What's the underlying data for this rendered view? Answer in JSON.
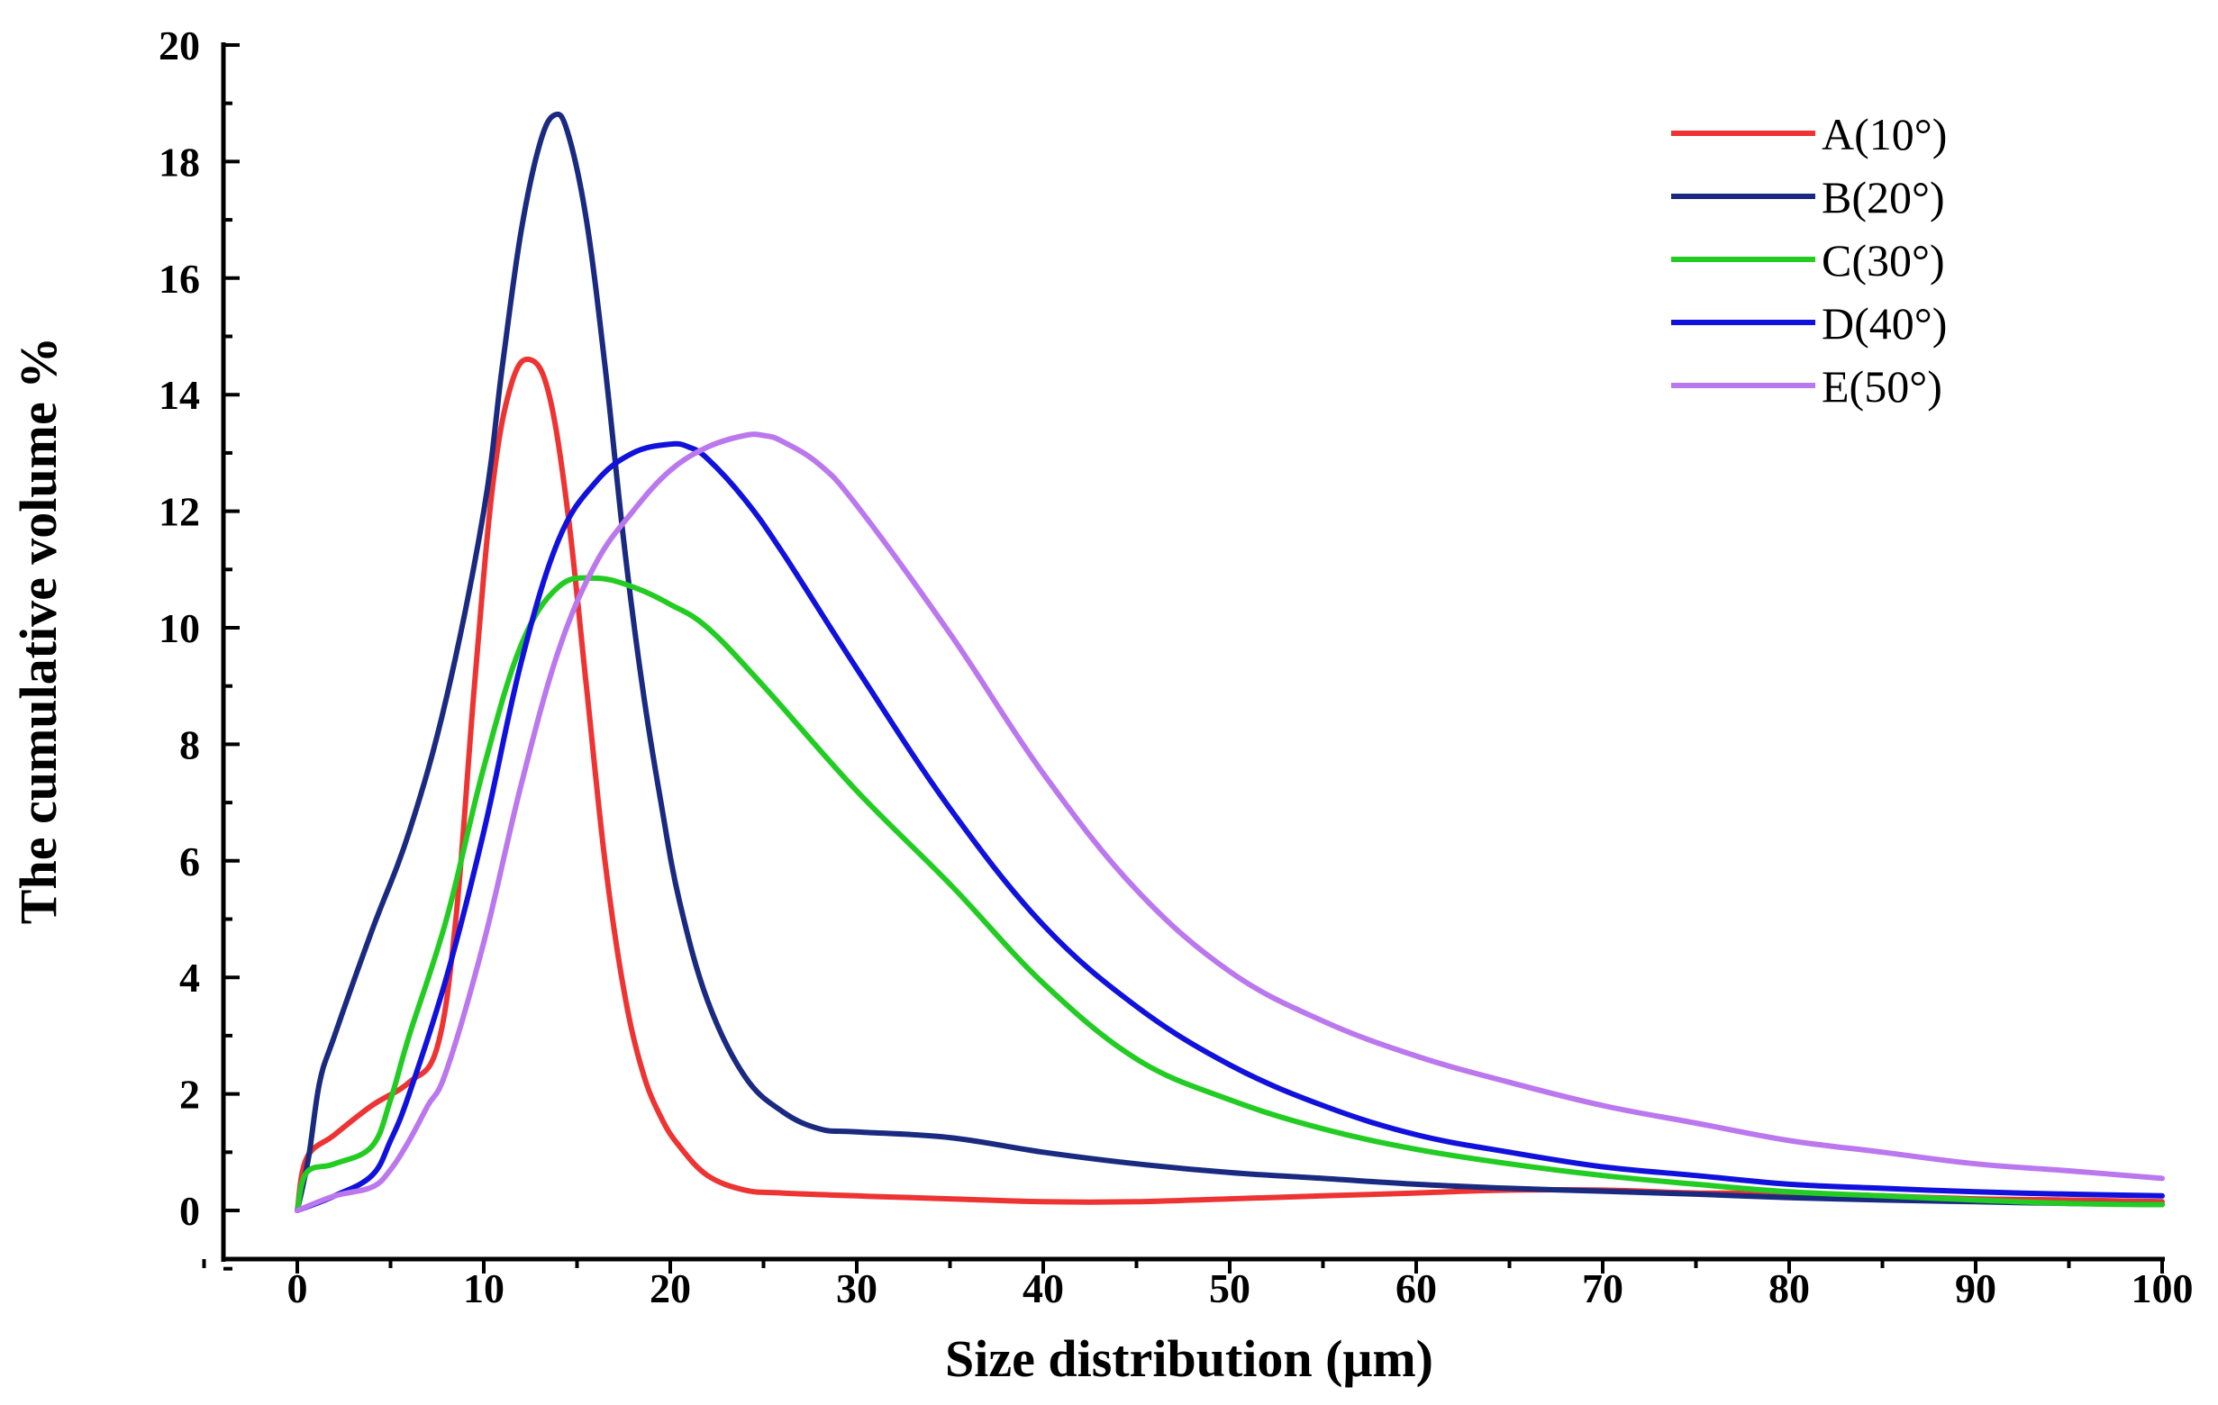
{
  "chart_data": {
    "type": "line",
    "title": "",
    "xlabel": "Size distribution (μm)",
    "ylabel": "The cumulative volume  %",
    "xlim": [
      0,
      100
    ],
    "ylim": [
      -1,
      20
    ],
    "xticks": [
      0,
      10,
      20,
      30,
      40,
      50,
      60,
      70,
      80,
      90,
      100
    ],
    "yticks": [
      0,
      2,
      4,
      6,
      8,
      10,
      12,
      14,
      16,
      18,
      20
    ],
    "xtick_labels": [
      "0",
      "10",
      "20",
      "30",
      "40",
      "50",
      "60",
      "70",
      "80",
      "90",
      "100"
    ],
    "ytick_labels": [
      "0",
      "2",
      "4",
      "6",
      "8",
      "10",
      "12",
      "14",
      "16",
      "18",
      "20"
    ],
    "grid": false,
    "legend_position": "top-right",
    "series": [
      {
        "name": "A(10°)",
        "color": "#ee3333",
        "x": [
          0,
          0.5,
          2,
          4,
          6,
          7.5,
          8.5,
          9.5,
          10.5,
          11.5,
          12.5,
          13.5,
          14.5,
          15.5,
          16.5,
          17.5,
          18.5,
          19.5,
          20.5,
          22,
          24,
          26,
          30,
          35,
          40,
          45,
          50,
          55,
          60,
          65,
          70,
          75,
          80,
          85,
          90,
          95,
          100
        ],
        "y": [
          0,
          0.9,
          1.3,
          1.8,
          2.2,
          2.8,
          5.0,
          9.0,
          12.5,
          14.2,
          14.6,
          14.0,
          12.0,
          9.0,
          6.0,
          3.8,
          2.4,
          1.6,
          1.1,
          0.6,
          0.35,
          0.3,
          0.25,
          0.2,
          0.15,
          0.15,
          0.2,
          0.25,
          0.3,
          0.35,
          0.35,
          0.3,
          0.3,
          0.25,
          0.2,
          0.18,
          0.15
        ]
      },
      {
        "name": "B(20°)",
        "color": "#1a2a80",
        "x": [
          0,
          0.6,
          1.2,
          2,
          4,
          6,
          8,
          10,
          11,
          12,
          13,
          13.8,
          14.5,
          15.5,
          16.5,
          17.5,
          18.5,
          19.5,
          20.5,
          22,
          24,
          26,
          28,
          30,
          35,
          40,
          45,
          50,
          55,
          60,
          65,
          70,
          75,
          80,
          85,
          90,
          95,
          100
        ],
        "y": [
          0,
          0.9,
          2.2,
          3.0,
          4.8,
          6.5,
          8.8,
          12.0,
          14.5,
          16.8,
          18.3,
          18.8,
          18.5,
          17.0,
          14.5,
          11.5,
          9.0,
          7.0,
          5.3,
          3.6,
          2.3,
          1.7,
          1.4,
          1.35,
          1.25,
          1.0,
          0.8,
          0.65,
          0.55,
          0.45,
          0.38,
          0.33,
          0.28,
          0.22,
          0.18,
          0.15,
          0.12,
          0.1
        ]
      },
      {
        "name": "C(30°)",
        "color": "#22cc22",
        "x": [
          0,
          0.5,
          2,
          4,
          5,
          6,
          8,
          10,
          12,
          14,
          16,
          18,
          20,
          22,
          25,
          30,
          35,
          40,
          45,
          50,
          55,
          60,
          65,
          70,
          75,
          80,
          85,
          90,
          95,
          100
        ],
        "y": [
          0,
          0.65,
          0.8,
          1.1,
          1.9,
          3.0,
          5.0,
          7.6,
          9.7,
          10.7,
          10.85,
          10.7,
          10.4,
          10.0,
          9.0,
          7.2,
          5.6,
          3.9,
          2.6,
          1.9,
          1.4,
          1.05,
          0.8,
          0.6,
          0.45,
          0.32,
          0.25,
          0.18,
          0.12,
          0.1
        ]
      },
      {
        "name": "D(40°)",
        "color": "#1111dd",
        "x": [
          0,
          2,
          4,
          5,
          6,
          8,
          10,
          12,
          14,
          16,
          18,
          20,
          21,
          22,
          24,
          26,
          30,
          35,
          40,
          45,
          50,
          55,
          60,
          65,
          70,
          75,
          80,
          85,
          90,
          95,
          100
        ],
        "y": [
          0,
          0.25,
          0.6,
          1.2,
          2.0,
          4.0,
          6.5,
          9.4,
          11.5,
          12.5,
          13.0,
          13.15,
          13.1,
          12.9,
          12.2,
          11.3,
          9.3,
          6.9,
          4.9,
          3.5,
          2.5,
          1.8,
          1.3,
          1.0,
          0.75,
          0.6,
          0.45,
          0.38,
          0.32,
          0.28,
          0.25
        ]
      },
      {
        "name": "E(50°)",
        "color": "#bb77ee",
        "x": [
          0,
          2,
          4,
          5,
          6,
          7,
          8,
          10,
          12,
          14,
          16,
          18,
          20,
          22,
          24,
          25,
          26,
          28,
          30,
          35,
          40,
          45,
          50,
          55,
          60,
          65,
          70,
          75,
          80,
          85,
          90,
          95,
          100
        ],
        "y": [
          0,
          0.25,
          0.4,
          0.7,
          1.2,
          1.8,
          2.4,
          4.6,
          7.3,
          9.6,
          11.1,
          12.0,
          12.7,
          13.1,
          13.3,
          13.3,
          13.2,
          12.8,
          12.1,
          9.9,
          7.5,
          5.5,
          4.1,
          3.25,
          2.65,
          2.2,
          1.8,
          1.5,
          1.2,
          1.0,
          0.8,
          0.68,
          0.55
        ]
      }
    ]
  }
}
